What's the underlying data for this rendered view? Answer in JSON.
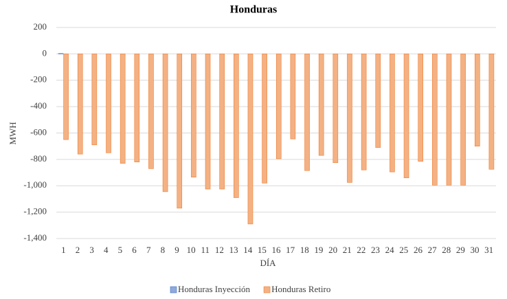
{
  "chart_data": {
    "type": "bar",
    "title": "Honduras",
    "x_label": "DÍA",
    "y_label": "MWH",
    "categories": [
      "1",
      "2",
      "3",
      "4",
      "5",
      "6",
      "7",
      "8",
      "9",
      "10",
      "11",
      "12",
      "13",
      "14",
      "15",
      "16",
      "17",
      "18",
      "19",
      "20",
      "21",
      "22",
      "23",
      "24",
      "25",
      "26",
      "27",
      "28",
      "29",
      "30",
      "31"
    ],
    "series": [
      {
        "name": "Honduras Inyección",
        "color": "#8faadc",
        "values": [
          3,
          0,
          0,
          0,
          0,
          0,
          0,
          0,
          0,
          0,
          0,
          0,
          0,
          0,
          0,
          0,
          0,
          0,
          0,
          0,
          0,
          0,
          0,
          0,
          0,
          0,
          0,
          0,
          0,
          0,
          0
        ]
      },
      {
        "name": "Honduras Retiro",
        "color": "#f4b183",
        "values": [
          -650,
          -760,
          -690,
          -750,
          -830,
          -820,
          -870,
          -1045,
          -1170,
          -935,
          -1025,
          -1025,
          -1090,
          -1290,
          -980,
          -795,
          -645,
          -885,
          -770,
          -825,
          -975,
          -880,
          -710,
          -895,
          -940,
          -815,
          -995,
          -995,
          -995,
          -700,
          -875
        ]
      }
    ],
    "ylim": [
      -1400,
      200
    ],
    "yticks": [
      {
        "value": -1400,
        "label": "-1,400"
      },
      {
        "value": -1200,
        "label": "-1,200"
      },
      {
        "value": -1000,
        "label": "-1,000"
      },
      -800,
      -600,
      -400,
      -200,
      0,
      200
    ],
    "grid": true,
    "legend": "bottom"
  }
}
